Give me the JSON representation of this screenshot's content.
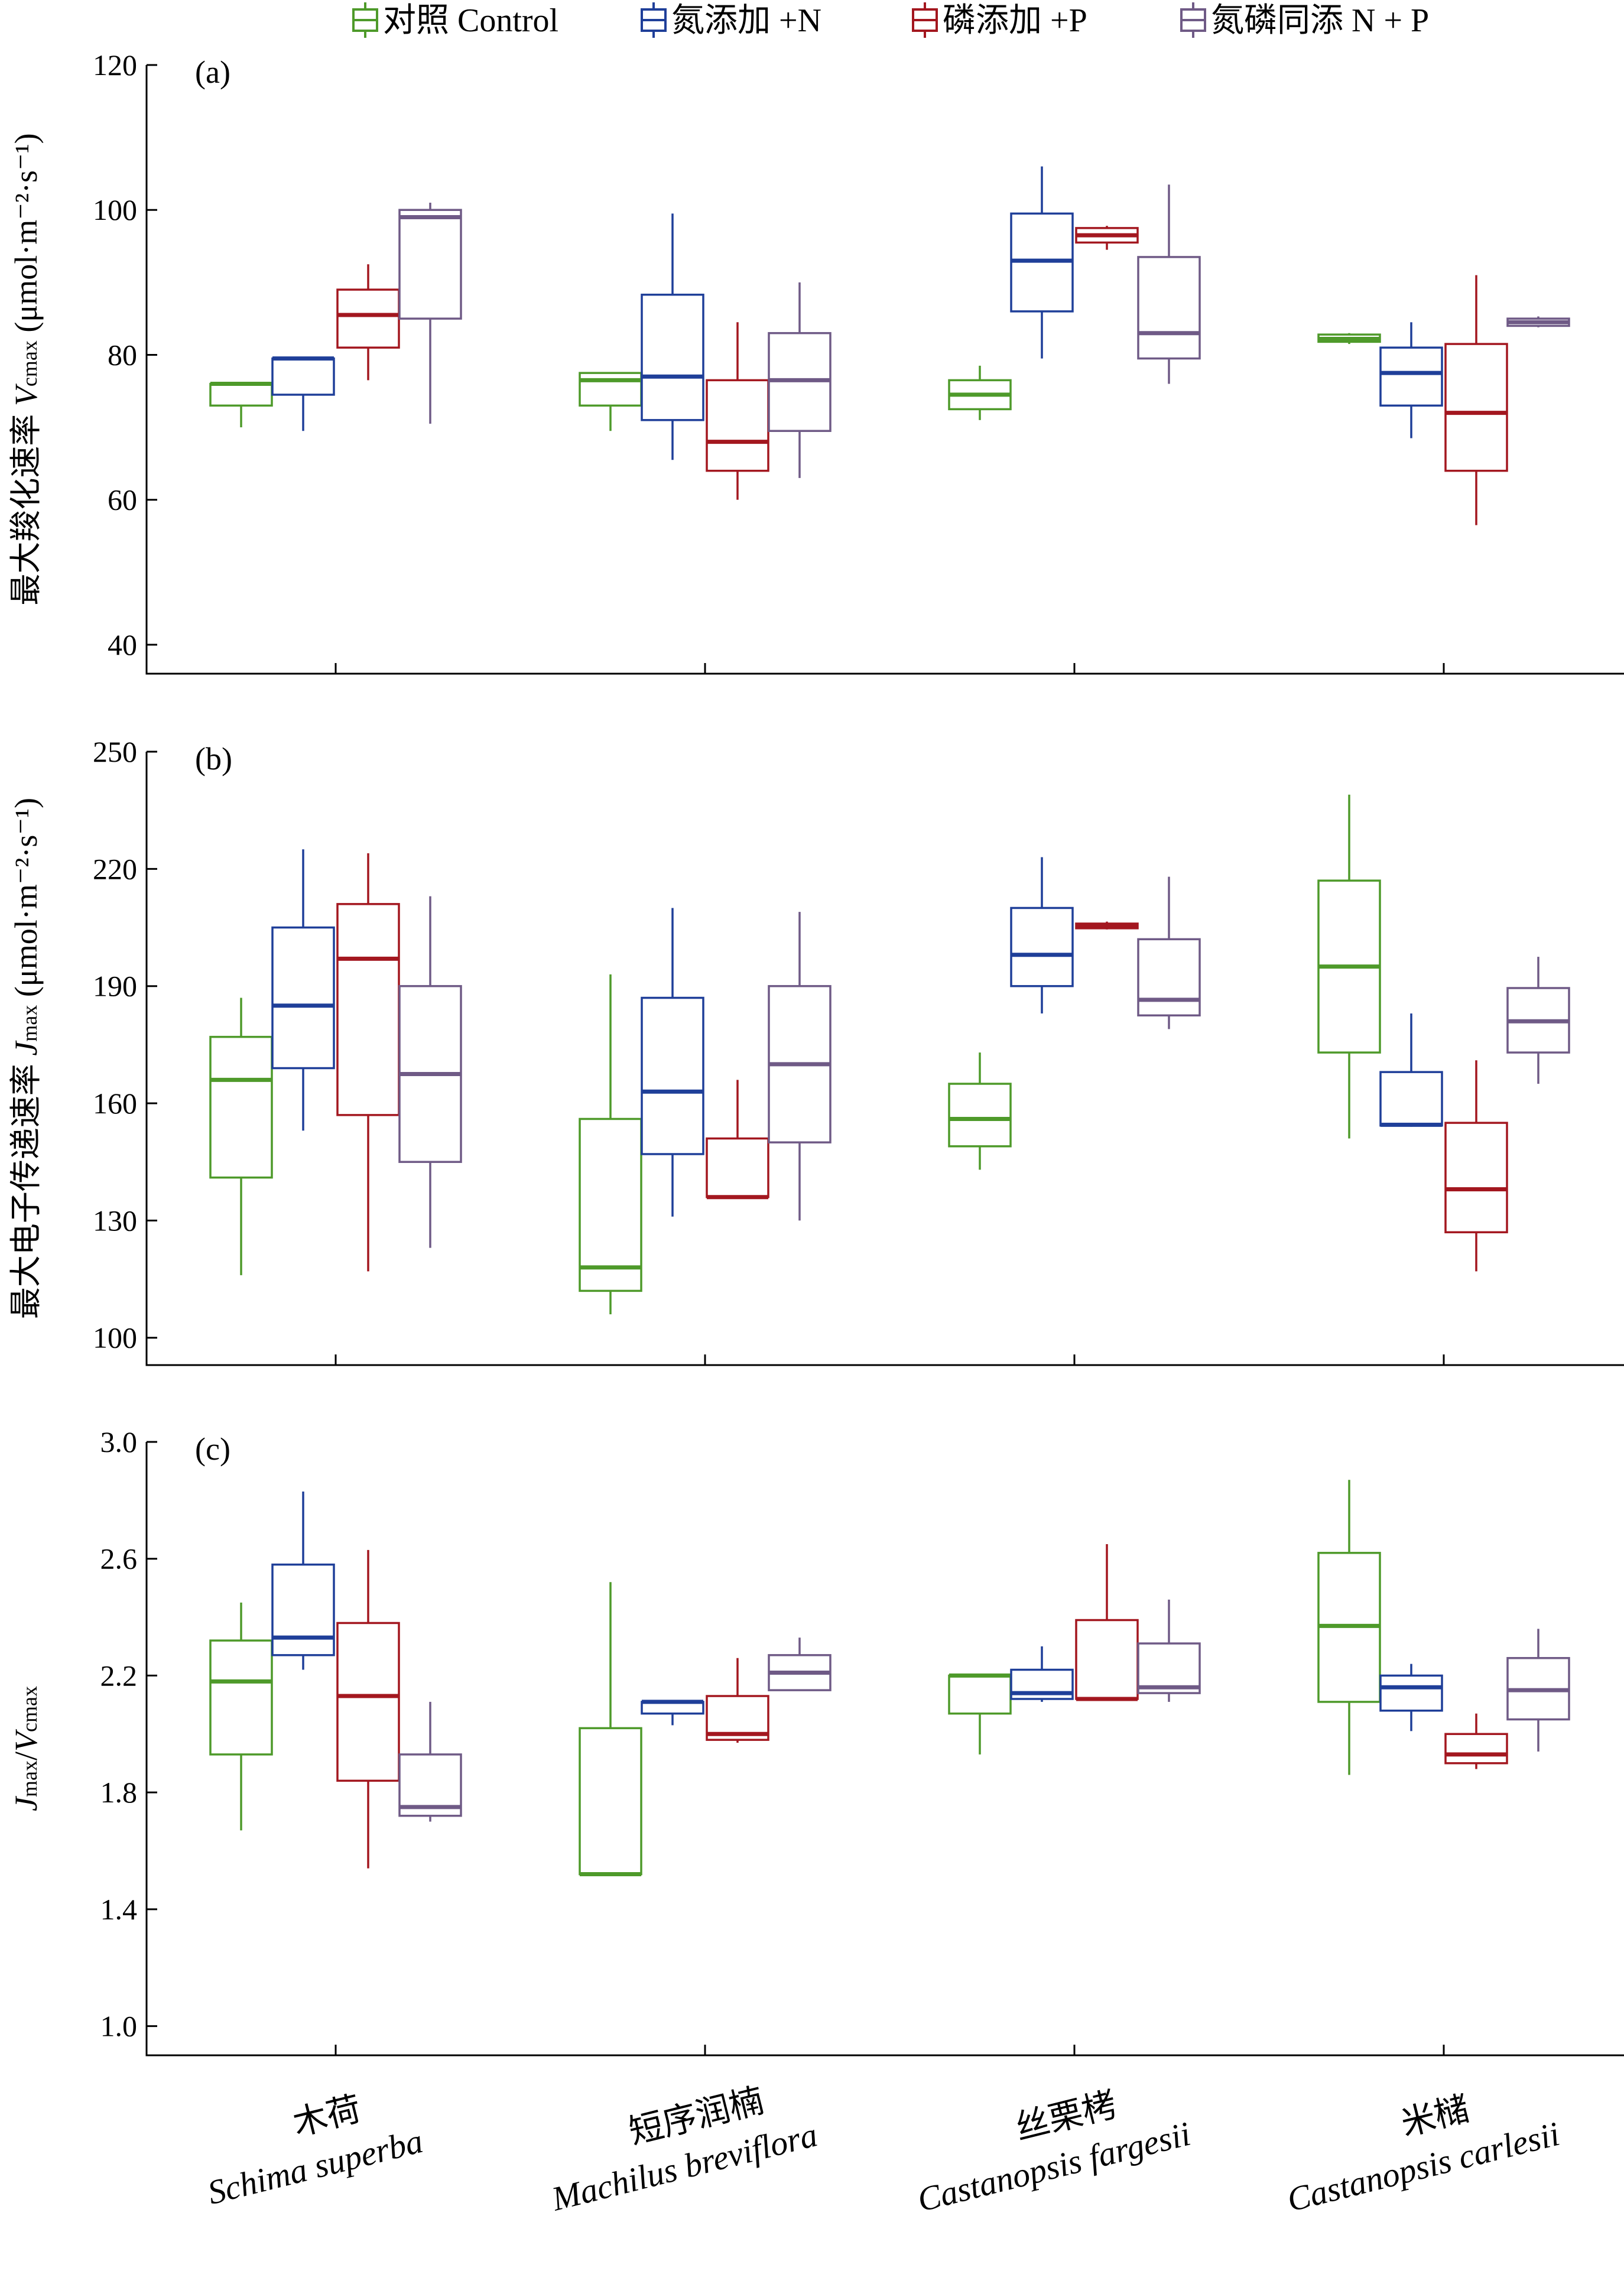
{
  "legend": [
    {
      "label": "对照 Control",
      "color": "#4e9a2a"
    },
    {
      "label": "氮添加 +N",
      "color": "#1f3f99"
    },
    {
      "label": "磷添加 +P",
      "color": "#a3171f"
    },
    {
      "label": "氮磷同添 N + P",
      "color": "#6f5a86"
    }
  ],
  "categories": [
    {
      "cn": "木荷",
      "latin": "Schima superba"
    },
    {
      "cn": "短序润楠",
      "latin": "Machilus breviflora"
    },
    {
      "cn": "丝栗栲",
      "latin": "Castanopsis fargesii"
    },
    {
      "cn": "米槠",
      "latin": "Castanopsis carlesii"
    }
  ],
  "chart_data": [
    {
      "type": "box",
      "panel": "(a)",
      "ylabel": "最大羧化速率 Vcmax (μmol·m⁻²·s⁻¹)",
      "ylim": [
        36,
        120
      ],
      "yticks": [
        40,
        60,
        80,
        100,
        120
      ],
      "series": [
        {
          "name": "对照 Control",
          "boxes": [
            {
              "min": 70,
              "q1": 73,
              "median": 76,
              "q3": 76,
              "max": 76
            },
            {
              "min": 69.5,
              "q1": 73,
              "median": 76.5,
              "q3": 77.5,
              "max": 77.5
            },
            {
              "min": 71,
              "q1": 72.5,
              "median": 74.5,
              "q3": 76.5,
              "max": 78.5
            },
            {
              "min": 81.5,
              "q1": 81.8,
              "median": 82.2,
              "q3": 82.8,
              "max": 83
            }
          ]
        },
        {
          "name": "氮添加 +N",
          "boxes": [
            {
              "min": 69.5,
              "q1": 74.5,
              "median": 79.5,
              "q3": 79.5,
              "max": 79.5
            },
            {
              "min": 65.5,
              "q1": 71,
              "median": 77,
              "q3": 88.3,
              "max": 99.5
            },
            {
              "min": 79.5,
              "q1": 86,
              "median": 93,
              "q3": 99.5,
              "max": 106
            },
            {
              "min": 68.5,
              "q1": 73,
              "median": 77.5,
              "q3": 81,
              "max": 84.5
            }
          ]
        },
        {
          "name": "磷添加 +P",
          "boxes": [
            {
              "min": 76.5,
              "q1": 81,
              "median": 85.5,
              "q3": 89,
              "max": 92.5
            },
            {
              "min": 60,
              "q1": 64,
              "median": 68,
              "q3": 76.5,
              "max": 84.5
            },
            {
              "min": 94.5,
              "q1": 95.5,
              "median": 96.5,
              "q3": 97.5,
              "max": 97.8
            },
            {
              "min": 56.5,
              "q1": 64,
              "median": 72,
              "q3": 81.5,
              "max": 91
            }
          ]
        },
        {
          "name": "氮磷同添 N + P",
          "boxes": [
            {
              "min": 70.5,
              "q1": 85,
              "median": 99,
              "q3": 100,
              "max": 101
            },
            {
              "min": 63,
              "q1": 69.5,
              "median": 76.5,
              "q3": 83,
              "max": 90
            },
            {
              "min": 76,
              "q1": 79.5,
              "median": 83,
              "q3": 93.5,
              "max": 103.5
            },
            {
              "min": 83.8,
              "q1": 84,
              "median": 84.5,
              "q3": 85,
              "max": 85.3
            }
          ]
        }
      ]
    },
    {
      "type": "box",
      "panel": "(b)",
      "ylabel": "最大电子传递速率 Jmax (μmol·m⁻²·s⁻¹)",
      "ylim": [
        93,
        250
      ],
      "yticks": [
        100,
        130,
        160,
        190,
        220,
        250
      ],
      "series": [
        {
          "name": "对照 Control",
          "boxes": [
            {
              "min": 116,
              "q1": 141,
              "median": 166,
              "q3": 177,
              "max": 187
            },
            {
              "min": 106,
              "q1": 112,
              "median": 118,
              "q3": 156,
              "max": 193
            },
            {
              "min": 143,
              "q1": 149,
              "median": 156,
              "q3": 165,
              "max": 173
            },
            {
              "min": 151,
              "q1": 173,
              "median": 195,
              "q3": 217,
              "max": 239
            }
          ]
        },
        {
          "name": "氮添加 +N",
          "boxes": [
            {
              "min": 153,
              "q1": 169,
              "median": 185,
              "q3": 205,
              "max": 225
            },
            {
              "min": 131,
              "q1": 147,
              "median": 163,
              "q3": 187,
              "max": 210
            },
            {
              "min": 183,
              "q1": 190,
              "median": 198,
              "q3": 210,
              "max": 223
            },
            {
              "min": 154,
              "q1": 154.3,
              "median": 154.5,
              "q3": 168,
              "max": 183
            }
          ]
        },
        {
          "name": "磷添加 +P",
          "boxes": [
            {
              "min": 117,
              "q1": 157,
              "median": 197,
              "q3": 211,
              "max": 224
            },
            {
              "min": 136,
              "q1": 136,
              "median": 136,
              "q3": 151,
              "max": 166
            },
            {
              "min": 204.5,
              "q1": 204.8,
              "median": 205.5,
              "q3": 206,
              "max": 206.5
            },
            {
              "min": 117,
              "q1": 127,
              "median": 138,
              "q3": 155,
              "max": 171
            }
          ]
        },
        {
          "name": "氮磷同添 N + P",
          "boxes": [
            {
              "min": 123,
              "q1": 145,
              "median": 167.5,
              "q3": 190,
              "max": 213
            },
            {
              "min": 130,
              "q1": 150,
              "median": 170,
              "q3": 190,
              "max": 209
            },
            {
              "min": 179,
              "q1": 182.5,
              "median": 186.5,
              "q3": 202,
              "max": 218
            },
            {
              "min": 165,
              "q1": 173,
              "median": 181,
              "q3": 189.5,
              "max": 197.5
            }
          ]
        }
      ]
    },
    {
      "type": "box",
      "panel": "(c)",
      "ylabel": "Jmax/Vcmax",
      "ylim": [
        0.9,
        3.0
      ],
      "yticks": [
        1.0,
        1.4,
        1.8,
        2.2,
        2.6,
        3.0
      ],
      "series": [
        {
          "name": "对照 Control",
          "boxes": [
            {
              "min": 1.67,
              "q1": 1.93,
              "median": 2.18,
              "q3": 2.32,
              "max": 2.45
            },
            {
              "min": 1.52,
              "q1": 1.52,
              "median": 1.52,
              "q3": 2.02,
              "max": 2.52
            },
            {
              "min": 1.93,
              "q1": 2.07,
              "median": 2.2,
              "q3": 2.2,
              "max": 2.2
            },
            {
              "min": 1.86,
              "q1": 2.11,
              "median": 2.37,
              "q3": 2.62,
              "max": 2.87
            }
          ]
        },
        {
          "name": "氮添加 +N",
          "boxes": [
            {
              "min": 2.22,
              "q1": 2.27,
              "median": 2.33,
              "q3": 2.58,
              "max": 2.83
            },
            {
              "min": 2.03,
              "q1": 2.07,
              "median": 2.11,
              "q3": 2.11,
              "max": 2.11
            },
            {
              "min": 2.11,
              "q1": 2.12,
              "median": 2.14,
              "q3": 2.22,
              "max": 2.3
            },
            {
              "min": 2.01,
              "q1": 2.08,
              "median": 2.16,
              "q3": 2.2,
              "max": 2.24
            }
          ]
        },
        {
          "name": "磷添加 +P",
          "boxes": [
            {
              "min": 1.54,
              "q1": 1.84,
              "median": 2.13,
              "q3": 2.38,
              "max": 2.63
            },
            {
              "min": 1.97,
              "q1": 1.98,
              "median": 2.0,
              "q3": 2.13,
              "max": 2.26
            },
            {
              "min": 2.12,
              "q1": 2.12,
              "median": 2.12,
              "q3": 2.39,
              "max": 2.65
            },
            {
              "min": 1.88,
              "q1": 1.9,
              "median": 1.93,
              "q3": 2.0,
              "max": 2.07
            }
          ]
        },
        {
          "name": "氮磷同添 N + P",
          "boxes": [
            {
              "min": 1.7,
              "q1": 1.72,
              "median": 1.75,
              "q3": 1.93,
              "max": 2.11
            },
            {
              "min": 2.15,
              "q1": 2.15,
              "median": 2.21,
              "q3": 2.27,
              "max": 2.33
            },
            {
              "min": 2.11,
              "q1": 2.14,
              "median": 2.16,
              "q3": 2.31,
              "max": 2.46
            },
            {
              "min": 1.94,
              "q1": 2.05,
              "median": 2.15,
              "q3": 2.26,
              "max": 2.36
            }
          ]
        }
      ]
    }
  ]
}
